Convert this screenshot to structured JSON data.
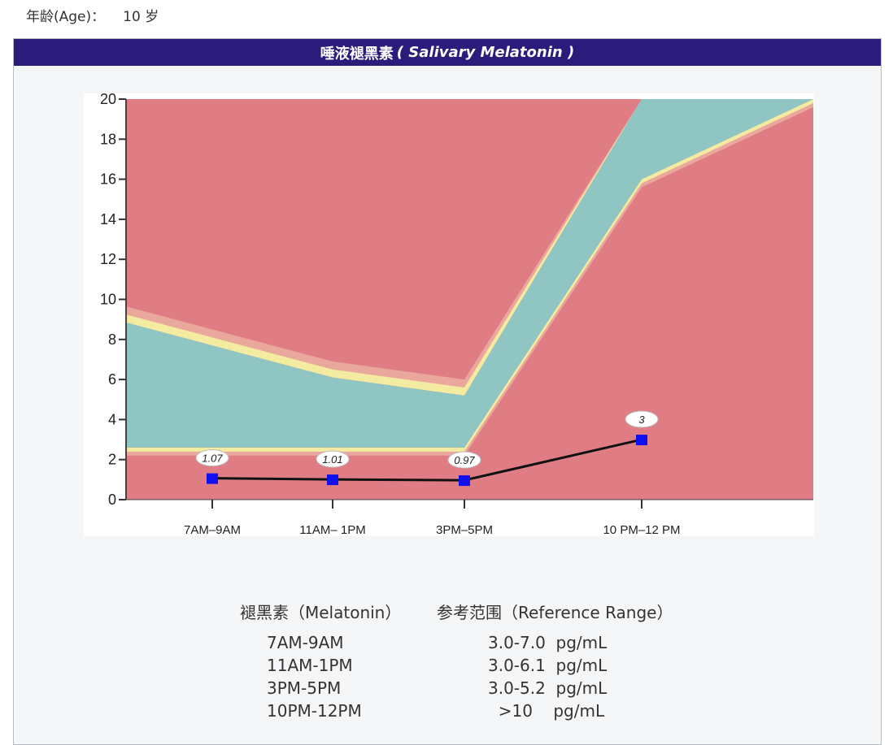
{
  "age": {
    "label": "年龄(Age)：",
    "value": "10 岁"
  },
  "panel": {
    "title_cn": "唾液褪黑素",
    "title_en": "( Salivary Melatonin )"
  },
  "reference": {
    "header_left": "褪黑素（Melatonin）",
    "header_right": "参考范围（Reference Range）",
    "rows": [
      {
        "time": "7AM-9AM",
        "range": "3.0-7.0  pg/mL"
      },
      {
        "time": "11AM-1PM",
        "range": "3.0-6.1  pg/mL"
      },
      {
        "time": "3PM-5PM",
        "range": "3.0-5.2  pg/mL"
      },
      {
        "time": "10PM-12PM",
        "range": "  >10    pg/mL"
      }
    ]
  },
  "colors": {
    "header_bg": "#2b1c7c",
    "red_zone": "#e07c84",
    "pink_band": "#eaa89c",
    "yellow_band": "#f3eba0",
    "green_zone": "#8fc5c3",
    "marker": "#1010ee",
    "line": "#111111"
  },
  "chart_data": {
    "type": "line",
    "categories": [
      "7AM–9AM",
      "11AM– 1PM",
      "3PM–5PM",
      "10 PM–12 PM"
    ],
    "series": [
      {
        "values": [
          1.07,
          1.01,
          0.97,
          3
        ],
        "labels": [
          "1.07",
          "1.01",
          "0.97",
          "3"
        ]
      }
    ],
    "reference_band": {
      "low": [
        2.6,
        2.6,
        2.6,
        16.0
      ],
      "high": [
        7.7,
        6.1,
        5.2,
        20
      ]
    },
    "ylim": [
      0,
      20
    ],
    "yticks": [
      0,
      2,
      4,
      6,
      8,
      10,
      12,
      14,
      16,
      18,
      20
    ],
    "grid": false
  }
}
